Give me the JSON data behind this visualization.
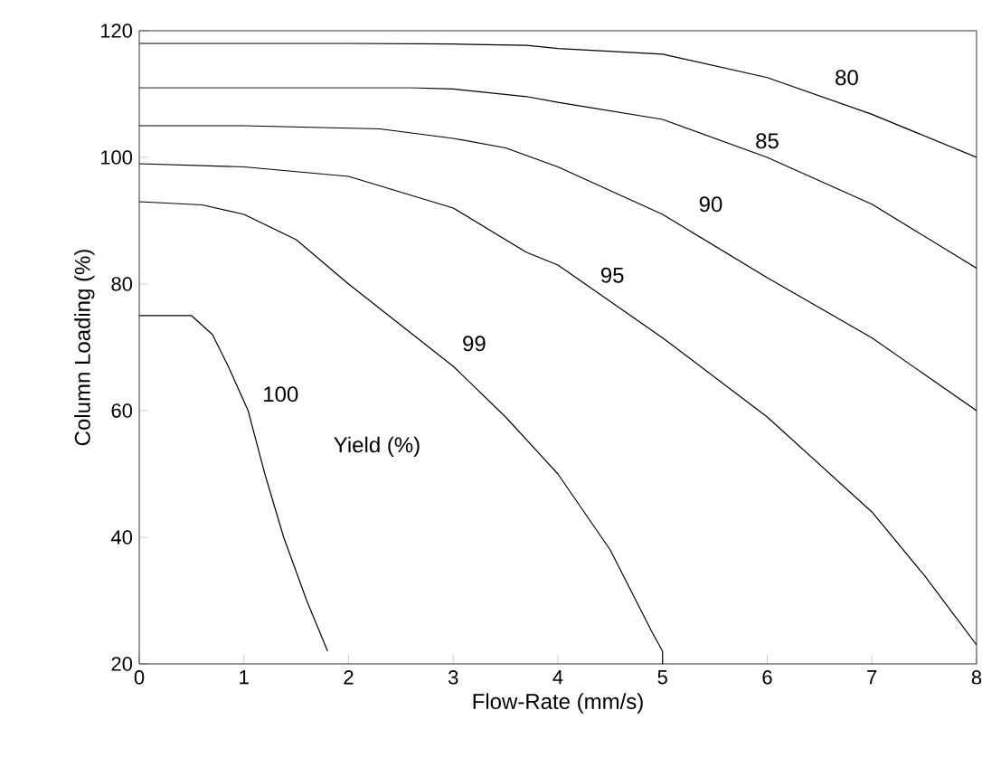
{
  "chart_data": {
    "type": "line",
    "xlabel": "Flow-Rate  (mm/s)",
    "ylabel": "Column Loading  (%)",
    "xlim": [
      0,
      8
    ],
    "ylim": [
      20,
      120
    ],
    "xticks": [
      0,
      1,
      2,
      3,
      4,
      5,
      6,
      7,
      8
    ],
    "yticks": [
      20,
      40,
      60,
      80,
      100,
      120
    ],
    "grid": false,
    "marker": "none",
    "line_style": "solid",
    "series": [
      {
        "color": "#000000",
        "x": [
          0,
          0.5,
          0.7,
          0.85,
          1.04,
          1.2,
          1.38,
          1.6,
          1.8
        ],
        "values": [
          75,
          75,
          72,
          67,
          60,
          50,
          40,
          30,
          22
        ]
      },
      {
        "color": "#000000",
        "x": [
          0,
          0.6,
          1,
          1.5,
          2,
          2.5,
          3,
          3.5,
          4,
          4.5,
          4.9,
          5,
          5
        ],
        "values": [
          93,
          92.5,
          91,
          87,
          80,
          73.5,
          67,
          59,
          50,
          38,
          25,
          22,
          20
        ]
      },
      {
        "color": "#000000",
        "x": [
          0,
          1,
          2,
          3,
          3.7,
          4,
          5,
          6,
          7,
          7.5,
          8
        ],
        "values": [
          99,
          98.5,
          97,
          92,
          85,
          83,
          71.5,
          59,
          44,
          34,
          23
        ]
      },
      {
        "color": "#000000",
        "x": [
          0,
          1,
          2.3,
          3,
          3.5,
          4,
          5,
          6,
          7,
          8
        ],
        "values": [
          105,
          105,
          104.5,
          103,
          101.5,
          98.5,
          91,
          81,
          71.5,
          60
        ]
      },
      {
        "color": "#000000",
        "x": [
          0,
          1,
          2.6,
          3,
          3.7,
          4,
          5,
          6,
          7,
          8
        ],
        "values": [
          111,
          111,
          111,
          110.8,
          109.6,
          108.7,
          106,
          100,
          92.6,
          82.5
        ]
      },
      {
        "color": "#000000",
        "x": [
          0,
          1,
          2,
          3,
          3.7,
          4,
          5,
          6,
          7,
          8
        ],
        "values": [
          118,
          118,
          118,
          117.9,
          117.7,
          117.2,
          116.3,
          112.6,
          106.8,
          100
        ]
      }
    ],
    "annotations": [
      {
        "text": "100",
        "x": 1.35,
        "y": 62.6
      },
      {
        "text": "99",
        "x": 3.2,
        "y": 70.6
      },
      {
        "text": "95",
        "x": 4.52,
        "y": 81.4
      },
      {
        "text": "90",
        "x": 5.46,
        "y": 92.6
      },
      {
        "text": "85",
        "x": 6.0,
        "y": 102.6
      },
      {
        "text": "80",
        "x": 6.76,
        "y": 112.6
      },
      "Yield  (%)"
    ]
  }
}
